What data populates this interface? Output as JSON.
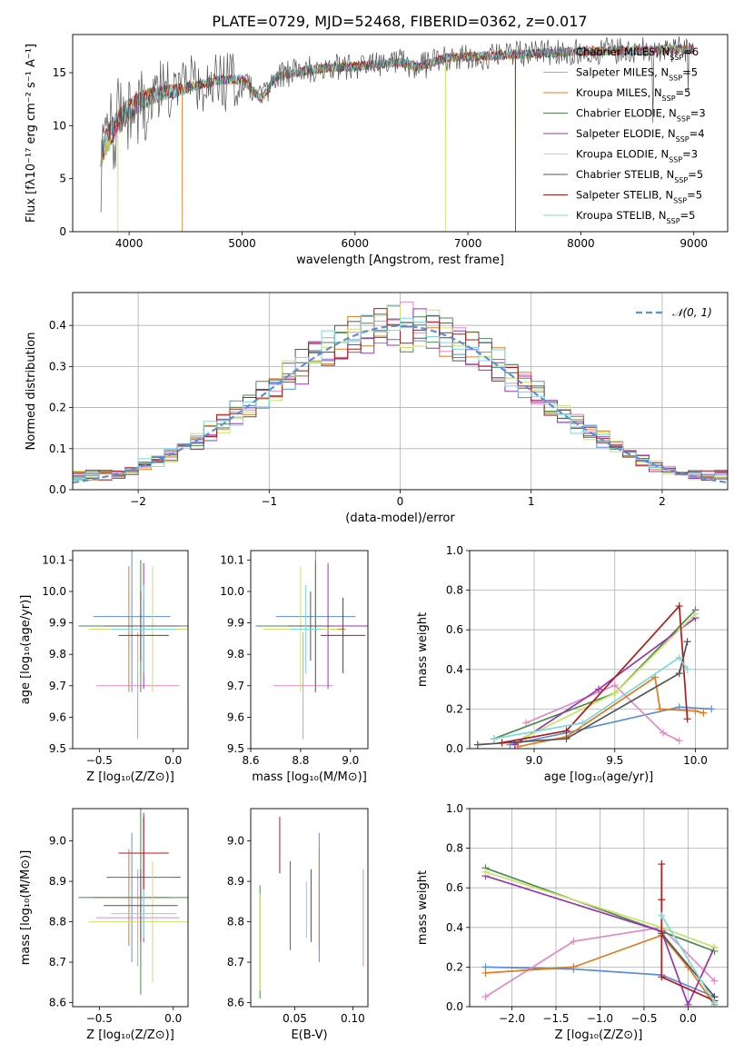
{
  "figure_title": "PLATE=0729, MJD=52468, FIBERID=0362, z=0.017",
  "palette": [
    "#5b8fd9",
    "#e58ac4",
    "#e07b1f",
    "#4e8a4e",
    "#9b35b0",
    "#c9e26a",
    "#555555",
    "#b01b1b",
    "#7ad9dd"
  ],
  "chart_data": [
    {
      "id": "spectrum",
      "type": "line",
      "title": "PLATE=0729, MJD=52468, FIBERID=0362, z=0.017",
      "xlabel": "wavelength [Angstrom, rest frame]",
      "ylabel": "Flux [fλ10⁻¹⁷ erg cm⁻² s⁻¹ A⁻¹]",
      "xlim": [
        3500,
        9300
      ],
      "ylim": [
        0,
        18.6
      ],
      "xticks": [
        4000,
        5000,
        6000,
        7000,
        8000,
        9000
      ],
      "yticks": [
        0,
        5,
        10,
        15
      ],
      "legend_position": "upper-right",
      "continuum_x": [
        3750,
        3850,
        3950,
        4050,
        4200,
        4400,
        4600,
        4800,
        5000,
        5170,
        5300,
        5600,
        6000,
        6400,
        6563,
        6800,
        7200,
        7600,
        8000,
        8500,
        9000
      ],
      "continuum_y": [
        7.5,
        9.5,
        11,
        12,
        12.8,
        13.3,
        13.8,
        14.3,
        14.4,
        12.5,
        14.6,
        15.3,
        15.6,
        16.0,
        15.5,
        16.4,
        16.6,
        16.8,
        17.0,
        17.1,
        17.2
      ],
      "series": [
        {
          "name": "Chabrier MILES, N",
          "sub": "SSP",
          "post": "=6"
        },
        {
          "name": "Salpeter MILES, N",
          "sub": "SSP",
          "post": "=5"
        },
        {
          "name": "Kroupa MILES, N",
          "sub": "SSP",
          "post": "=5"
        },
        {
          "name": "Chabrier ELODIE, N",
          "sub": "SSP",
          "post": "=3"
        },
        {
          "name": "Salpeter ELODIE, N",
          "sub": "SSP",
          "post": "=4"
        },
        {
          "name": "Kroupa ELODIE, N",
          "sub": "SSP",
          "post": "=3"
        },
        {
          "name": "Chabrier STELIB, N",
          "sub": "SSP",
          "post": "=5"
        },
        {
          "name": "Salpeter STELIB, N",
          "sub": "SSP",
          "post": "=5"
        },
        {
          "name": "Kroupa STELIB, N",
          "sub": "SSP",
          "post": "=5"
        }
      ]
    },
    {
      "id": "residuals",
      "type": "histogram",
      "xlabel": "(data-model)/error",
      "ylabel": "Normed distribution",
      "xlim": [
        -2.5,
        2.5
      ],
      "ylim": [
        0,
        0.48
      ],
      "xticks": [
        -2,
        -1,
        0,
        1,
        2
      ],
      "yticks": [
        0.0,
        0.1,
        0.2,
        0.3,
        0.4
      ],
      "grid": true,
      "legend": "𝒩(0, 1)",
      "legend_position": "upper-right",
      "bin_width": 0.1
    },
    {
      "id": "age_vs_Z",
      "type": "errorbar",
      "xlabel": "Z [log₁₀(Z/Z⊙)]",
      "ylabel": "age  [log₁₀(age/yr)]",
      "xlim": [
        -0.68,
        0.1
      ],
      "ylim": [
        9.5,
        10.13
      ],
      "xticks": [
        -0.5,
        0.0
      ],
      "yticks": [
        9.5,
        9.6,
        9.7,
        9.8,
        9.9,
        10.0,
        10.1
      ],
      "points": [
        {
          "x": -0.28,
          "y": 9.92,
          "xerr": 0.26,
          "yerr": 0.24
        },
        {
          "x": -0.24,
          "y": 9.7,
          "xerr": 0.28,
          "yerr": 0.17
        },
        {
          "x": -0.3,
          "y": 9.88,
          "xerr": 0.24,
          "yerr": 0.2
        },
        {
          "x": -0.22,
          "y": 9.89,
          "xerr": 0.42,
          "yerr": 0.21
        },
        {
          "x": -0.2,
          "y": 9.89,
          "xerr": 0.25,
          "yerr": 0.2
        },
        {
          "x": -0.14,
          "y": 9.88,
          "xerr": 0.43,
          "yerr": 0.2
        },
        {
          "x": -0.22,
          "y": 9.89,
          "xerr": 0.25,
          "yerr": 0.11
        },
        {
          "x": -0.2,
          "y": 9.86,
          "xerr": 0.17,
          "yerr": 0.12
        },
        {
          "x": -0.2,
          "y": 9.88,
          "xerr": 0.22,
          "yerr": 0.14
        }
      ]
    },
    {
      "id": "age_vs_mass",
      "type": "errorbar",
      "xlabel": "mass [log₁₀(M/M⊙)]",
      "ylabel": "",
      "xlim": [
        8.6,
        9.07
      ],
      "ylim": [
        9.5,
        10.13
      ],
      "xticks": [
        8.6,
        8.8,
        9.0
      ],
      "yticks": [
        9.5,
        9.6,
        9.7,
        9.8,
        9.9,
        10.0,
        10.1
      ],
      "points": [
        {
          "x": 8.86,
          "y": 9.92,
          "xerr": 0.16,
          "yerr": 0.24
        },
        {
          "x": 8.81,
          "y": 9.7,
          "xerr": 0.12,
          "yerr": 0.17
        },
        {
          "x": 8.86,
          "y": 9.88,
          "xerr": 0.12,
          "yerr": 0.2
        },
        {
          "x": 8.86,
          "y": 9.89,
          "xerr": 0.24,
          "yerr": 0.21
        },
        {
          "x": 8.91,
          "y": 9.89,
          "xerr": 0.16,
          "yerr": 0.2
        },
        {
          "x": 8.8,
          "y": 9.88,
          "xerr": 0.15,
          "yerr": 0.2
        },
        {
          "x": 8.84,
          "y": 9.89,
          "xerr": 0.09,
          "yerr": 0.11
        },
        {
          "x": 8.97,
          "y": 9.86,
          "xerr": 0.09,
          "yerr": 0.12
        },
        {
          "x": 8.82,
          "y": 9.88,
          "xerr": 0.06,
          "yerr": 0.14
        }
      ]
    },
    {
      "id": "weight_vs_age",
      "type": "line",
      "xlabel": "age  [log₁₀(age/yr)]",
      "ylabel": "mass weight",
      "xlim": [
        8.6,
        10.2
      ],
      "ylim": [
        0,
        1.0
      ],
      "xticks": [
        9.0,
        9.5,
        10.0
      ],
      "yticks": [
        0.0,
        0.2,
        0.4,
        0.6,
        0.8,
        1.0
      ],
      "grid": true,
      "series": [
        {
          "x": [
            8.85,
            9.2,
            9.9,
            10.1
          ],
          "y": [
            0.02,
            0.08,
            0.21,
            0.2
          ]
        },
        {
          "x": [
            8.95,
            9.5,
            9.8,
            9.9
          ],
          "y": [
            0.13,
            0.32,
            0.08,
            0.04
          ]
        },
        {
          "x": [
            8.9,
            9.2,
            9.75,
            9.78,
            10.0,
            10.05
          ],
          "y": [
            0.01,
            0.06,
            0.36,
            0.2,
            0.19,
            0.18
          ]
        },
        {
          "x": [
            8.75,
            9.5,
            10.0
          ],
          "y": [
            0.05,
            0.28,
            0.7
          ]
        },
        {
          "x": [
            8.88,
            9.4,
            10.0
          ],
          "y": [
            0.02,
            0.3,
            0.66
          ]
        },
        {
          "x": [
            8.95,
            9.5,
            10.0
          ],
          "y": [
            0.06,
            0.28,
            0.68
          ]
        },
        {
          "x": [
            8.65,
            9.2,
            9.9,
            9.95
          ],
          "y": [
            0.02,
            0.05,
            0.38,
            0.54
          ]
        },
        {
          "x": [
            8.8,
            9.2,
            9.9,
            9.95
          ],
          "y": [
            0.03,
            0.09,
            0.72,
            0.15
          ]
        },
        {
          "x": [
            8.75,
            9.3,
            9.9,
            9.95
          ],
          "y": [
            0.05,
            0.13,
            0.46,
            0.4
          ]
        }
      ]
    },
    {
      "id": "mass_vs_Z",
      "type": "errorbar",
      "xlabel": "Z [log₁₀(Z/Z⊙)]",
      "ylabel": "mass [log₁₀(M/M⊙)]",
      "xlim": [
        -0.68,
        0.1
      ],
      "ylim": [
        8.59,
        9.08
      ],
      "xticks": [
        -0.5,
        0.0
      ],
      "yticks": [
        8.6,
        8.7,
        8.8,
        8.9,
        9.0
      ],
      "points": [
        {
          "x": -0.28,
          "y": 8.86,
          "xerr": 0.26,
          "yerr": 0.16
        },
        {
          "x": -0.24,
          "y": 8.81,
          "xerr": 0.28,
          "yerr": 0.12
        },
        {
          "x": -0.3,
          "y": 8.86,
          "xerr": 0.24,
          "yerr": 0.12
        },
        {
          "x": -0.22,
          "y": 8.86,
          "xerr": 0.42,
          "yerr": 0.24
        },
        {
          "x": -0.2,
          "y": 8.91,
          "xerr": 0.25,
          "yerr": 0.16
        },
        {
          "x": -0.14,
          "y": 8.8,
          "xerr": 0.43,
          "yerr": 0.15
        },
        {
          "x": -0.22,
          "y": 8.84,
          "xerr": 0.25,
          "yerr": 0.09
        },
        {
          "x": -0.2,
          "y": 8.97,
          "xerr": 0.17,
          "yerr": 0.09
        },
        {
          "x": -0.2,
          "y": 8.82,
          "xerr": 0.22,
          "yerr": 0.06
        }
      ]
    },
    {
      "id": "mass_vs_EBV",
      "type": "errorbar",
      "xlabel": "E(B-V)",
      "ylabel": "",
      "xlim": [
        0.012,
        0.113
      ],
      "ylim": [
        8.59,
        9.08
      ],
      "xticks": [
        0.05,
        0.1
      ],
      "yticks": [
        8.6,
        8.7,
        8.8,
        8.9,
        9.0
      ],
      "points": [
        {
          "x": 0.071,
          "y": 8.86,
          "yerr": 0.16
        },
        {
          "x": 0.109,
          "y": 8.81,
          "yerr": 0.12
        },
        {
          "x": 0.071,
          "y": 8.86,
          "yerr": 0.12
        },
        {
          "x": 0.02,
          "y": 8.75,
          "yerr": 0.14
        },
        {
          "x": 0.046,
          "y": 8.84,
          "yerr": 0.11
        },
        {
          "x": 0.02,
          "y": 8.75,
          "yerr": 0.12
        },
        {
          "x": 0.064,
          "y": 8.84,
          "yerr": 0.09
        },
        {
          "x": 0.037,
          "y": 8.99,
          "yerr": 0.07
        },
        {
          "x": 0.06,
          "y": 8.83,
          "yerr": 0.07
        }
      ]
    },
    {
      "id": "weight_vs_Z",
      "type": "line",
      "xlabel": "Z [log₁₀(Z/Z⊙)]",
      "ylabel": "mass weight",
      "xlim": [
        -2.48,
        0.45
      ],
      "ylim": [
        0,
        1.0
      ],
      "xticks": [
        -2.0,
        -1.5,
        -1.0,
        -0.5,
        0.0
      ],
      "yticks": [
        0.0,
        0.2,
        0.4,
        0.6,
        0.8,
        1.0
      ],
      "grid": true,
      "series": [
        {
          "x": [
            -2.3,
            -1.3,
            -0.3,
            0.3
          ],
          "y": [
            0.2,
            0.19,
            0.16,
            0.05
          ]
        },
        {
          "x": [
            -2.3,
            -1.3,
            -0.3,
            0.3
          ],
          "y": [
            0.05,
            0.33,
            0.4,
            0.13
          ]
        },
        {
          "x": [
            -2.3,
            -1.3,
            -0.3,
            0.0,
            0.3
          ],
          "y": [
            0.17,
            0.2,
            0.36,
            0.2,
            0.01
          ]
        },
        {
          "x": [
            -2.3,
            -0.3,
            0.3
          ],
          "y": [
            0.7,
            0.38,
            0.28
          ]
        },
        {
          "x": [
            -2.3,
            -0.3,
            0.0,
            0.3
          ],
          "y": [
            0.66,
            0.38,
            0.01,
            0.3
          ]
        },
        {
          "x": [
            -2.3,
            -0.3,
            0.3
          ],
          "y": [
            0.68,
            0.4,
            0.3
          ]
        },
        {
          "x": [
            -0.3,
            0.3
          ],
          "y": [
            0.37,
            0.05
          ]
        },
        {
          "x": [
            -0.3,
            -0.3,
            -0.3,
            0.3
          ],
          "y": [
            0.72,
            0.54,
            0.15,
            0.03
          ]
        },
        {
          "x": [
            -0.3,
            0.3
          ],
          "y": [
            0.46,
            0.02
          ]
        }
      ]
    }
  ]
}
